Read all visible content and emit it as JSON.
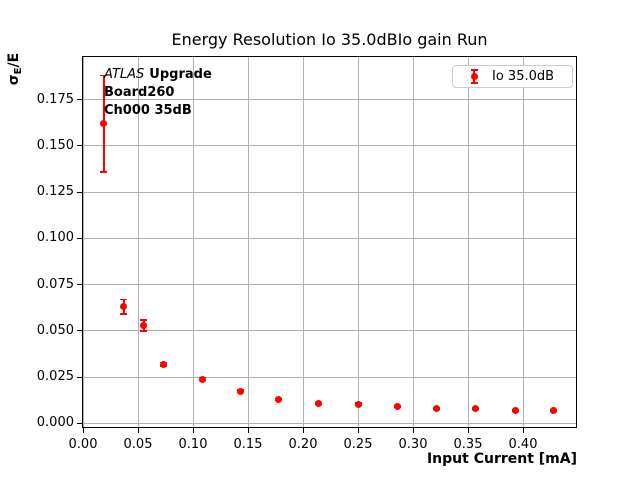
{
  "title": "Energy Resolution Io 35.0dBIo gain Run",
  "ylabel_parts": {
    "sigma": "σ",
    "sub": "E",
    "rest": "/E"
  },
  "annotation": {
    "atlas": "ATLAS",
    "upgrade": "Upgrade",
    "board": "Board260",
    "channel": "Ch000 35dB"
  },
  "legend": {
    "label": "Io 35.0dB",
    "position": "upper right"
  },
  "colors": {
    "series": "#ff0000",
    "grid": "#b0b0b0",
    "axis": "#000000",
    "legend_border": "#cccccc"
  },
  "chart_data": {
    "type": "scatter",
    "title": "Energy Resolution Io 35.0dBIo gain Run",
    "xlabel": "Input Current [mA]",
    "ylabel": "σE/E",
    "xlim": [
      0,
      0.45
    ],
    "ylim": [
      -0.003,
      0.198
    ],
    "grid": true,
    "legend_position": "upper right",
    "xticks": [
      0,
      0.05,
      0.1,
      0.15,
      0.2,
      0.25,
      0.3,
      0.35,
      0.4
    ],
    "xtick_labels": [
      "0.00",
      "0.05",
      "0.10",
      "0.15",
      "0.20",
      "0.25",
      "0.30",
      "0.35",
      "0.40"
    ],
    "yticks": [
      0,
      0.025,
      0.05,
      0.075,
      0.1,
      0.125,
      0.15,
      0.175
    ],
    "ytick_labels": [
      "0.000",
      "0.025",
      "0.050",
      "0.075",
      "0.100",
      "0.125",
      "0.150",
      "0.175"
    ],
    "series": [
      {
        "name": "Io 35.0dB",
        "color": "#ff0000",
        "marker": "circle",
        "x": [
          0.019,
          0.037,
          0.055,
          0.073,
          0.109,
          0.143,
          0.178,
          0.214,
          0.25,
          0.286,
          0.321,
          0.357,
          0.393,
          0.428
        ],
        "y": [
          0.162,
          0.063,
          0.053,
          0.032,
          0.024,
          0.0175,
          0.013,
          0.011,
          0.0105,
          0.009,
          0.008,
          0.008,
          0.007,
          0.007
        ],
        "yerr": [
          0.026,
          0.004,
          0.003,
          0.001,
          0.0008,
          0.0006,
          0.0005,
          0.0004,
          0.0004,
          0.0003,
          0.0003,
          0.0003,
          0.0002,
          0.0002
        ]
      }
    ]
  }
}
